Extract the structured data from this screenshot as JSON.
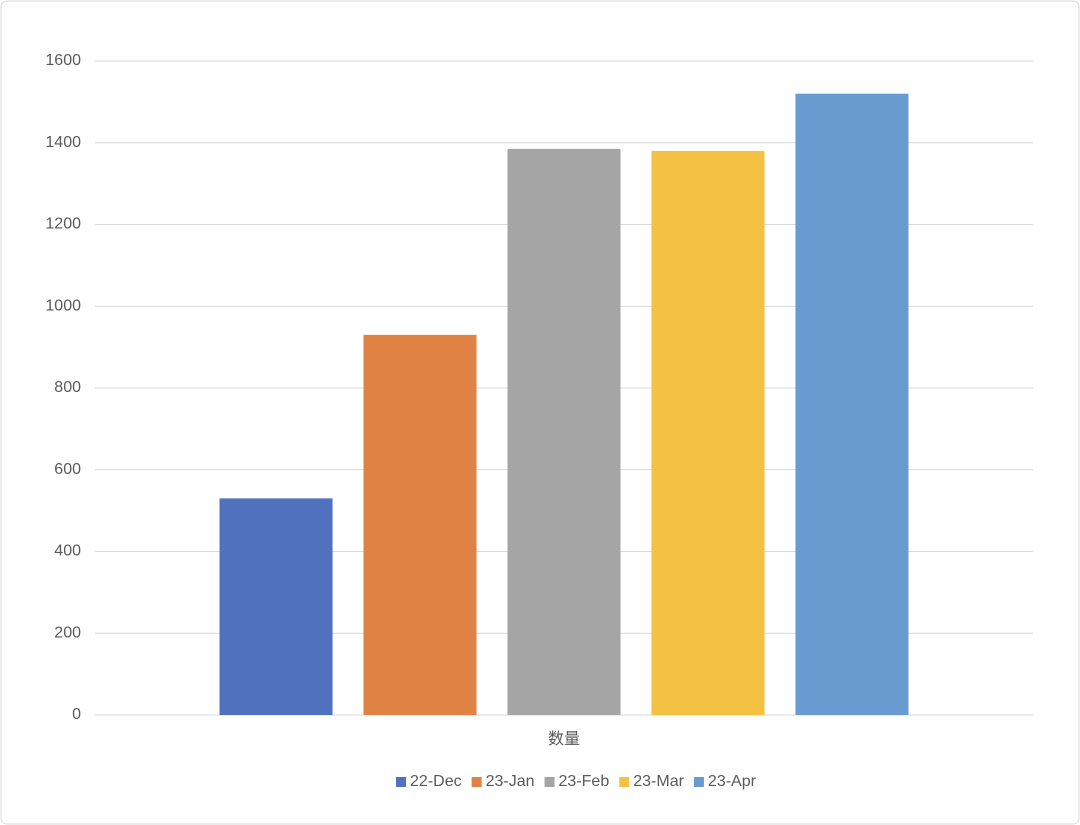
{
  "chart_data": {
    "type": "bar",
    "categories": [
      "数量"
    ],
    "series": [
      {
        "name": "22-Dec",
        "color": "#5072be",
        "values": [
          530
        ]
      },
      {
        "name": "23-Jan",
        "color": "#e08244",
        "values": [
          930
        ]
      },
      {
        "name": "23-Feb",
        "color": "#a5a5a5",
        "values": [
          1385
        ]
      },
      {
        "name": "23-Mar",
        "color": "#f4c142",
        "values": [
          1380
        ]
      },
      {
        "name": "23-Apr",
        "color": "#6a9bd0",
        "values": [
          1520
        ]
      }
    ],
    "ylim": [
      0,
      1600
    ],
    "yticks": [
      0,
      200,
      400,
      600,
      800,
      1000,
      1200,
      1400,
      1600
    ],
    "grid": true,
    "legend": "bottom"
  }
}
